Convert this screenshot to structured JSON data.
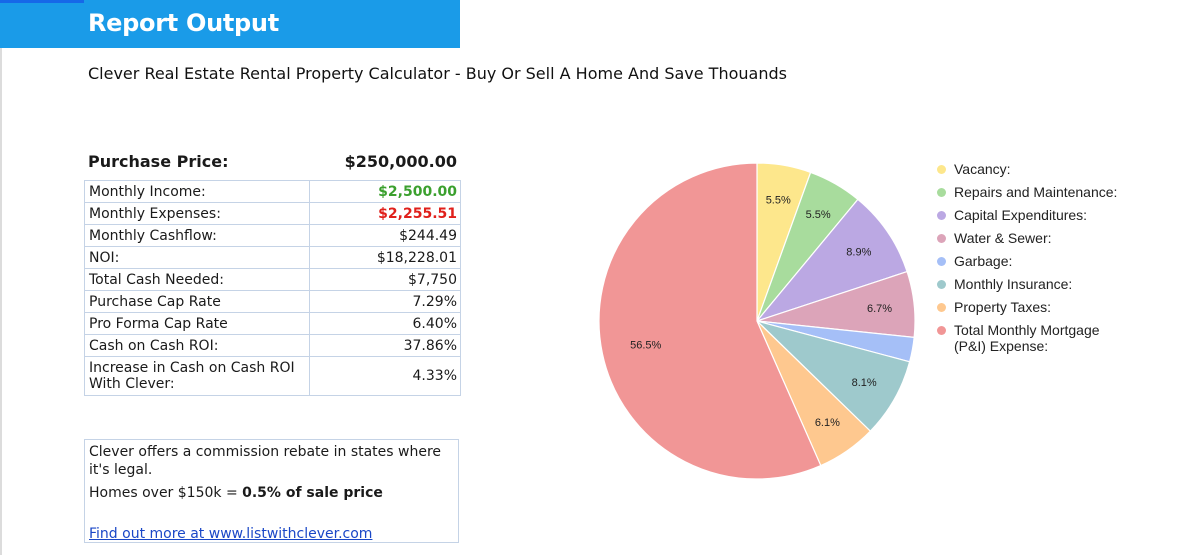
{
  "header": {
    "title": "Report Output"
  },
  "subtitle": "Clever Real Estate Rental Property Calculator - Buy Or Sell A Home And Save Thouands",
  "purchase": {
    "label": "Purchase Price:",
    "value": "$250,000.00"
  },
  "metrics": [
    {
      "label": "Monthly Income:",
      "value": "$2,500.00",
      "style": "green"
    },
    {
      "label": "Monthly Expenses:",
      "value": "$2,255.51",
      "style": "red"
    },
    {
      "label": "Monthly Cashflow:",
      "value": "$244.49"
    },
    {
      "label": "NOI:",
      "value": "$18,228.01"
    },
    {
      "label": "Total Cash Needed:",
      "value": "$7,750"
    },
    {
      "label": "Purchase Cap Rate",
      "value": "7.29%"
    },
    {
      "label": "Pro Forma Cap Rate",
      "value": "6.40%"
    },
    {
      "label": "Cash on Cash ROI:",
      "value": "37.86%"
    },
    {
      "label": "Increase in Cash on Cash ROI With Clever:",
      "value": "4.33%"
    }
  ],
  "rebate": {
    "line1": "Clever offers a commission rebate in states where it's legal.",
    "line2_prefix": "Homes over $150k = ",
    "line2_bold": "0.5% of sale price",
    "link": "Find out more at www.listwithclever.com"
  },
  "chart_data": {
    "type": "pie",
    "start_angle_deg": 0,
    "direction": "clockwise",
    "slices": [
      {
        "name": "Vacancy:",
        "value": 5.5,
        "label": "5.5%",
        "color": "#fde78c"
      },
      {
        "name": "Repairs and Maintenance:",
        "value": 5.5,
        "label": "5.5%",
        "color": "#a8dc9d"
      },
      {
        "name": "Capital Expenditures:",
        "value": 8.9,
        "label": "8.9%",
        "color": "#bba8e3"
      },
      {
        "name": "Water & Sewer:",
        "value": 6.7,
        "label": "6.7%",
        "color": "#dca4b9"
      },
      {
        "name": "Garbage:",
        "value": 2.5,
        "label": "",
        "color": "#a5bff7"
      },
      {
        "name": "Monthly Insurance:",
        "value": 8.1,
        "label": "8.1%",
        "color": "#9ec9cc"
      },
      {
        "name": "Property Taxes:",
        "value": 6.1,
        "label": "6.1%",
        "color": "#fec88f"
      },
      {
        "name": "Total Monthly Mortgage (P&I) Expense:",
        "value": 56.5,
        "label": "56.5%",
        "color": "#f19696"
      }
    ],
    "legend_position": "right"
  }
}
